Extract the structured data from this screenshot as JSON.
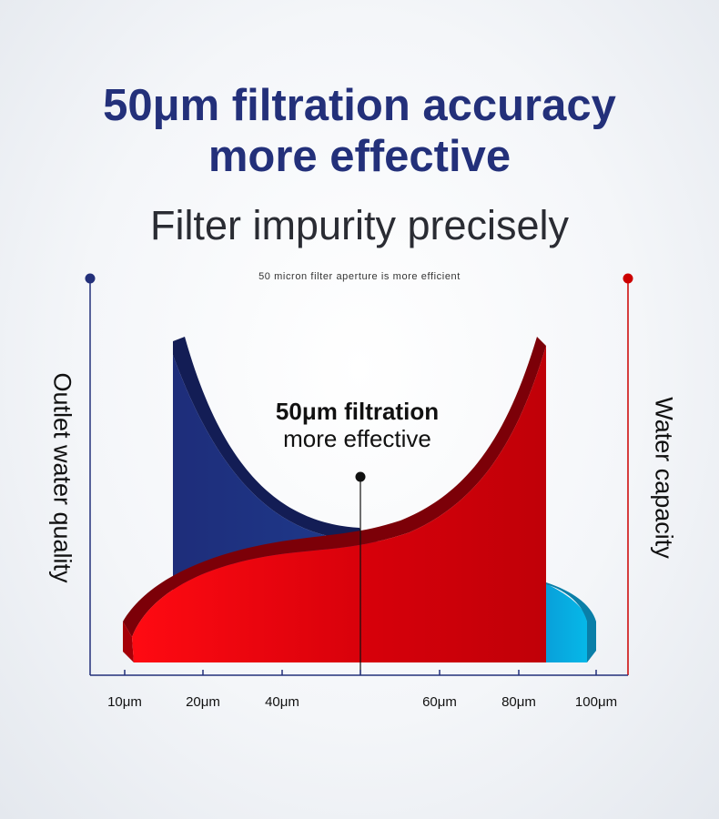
{
  "headline": {
    "line1": "50μm filtration accuracy",
    "line2": "more effective"
  },
  "subheadline": "Filter impurity precisely",
  "chart_data": {
    "type": "area",
    "title": "50 micron filter aperture is more efficient",
    "ylabel_left": "Outlet water quality",
    "ylabel_right": "Water capacity",
    "x_ticks": [
      {
        "label": "10μm",
        "value": 10
      },
      {
        "label": "20μm",
        "value": 20
      },
      {
        "label": "40μm",
        "value": 40
      },
      {
        "label": "",
        "value": 50
      },
      {
        "label": "60μm",
        "value": 60
      },
      {
        "label": "80μm",
        "value": 80
      },
      {
        "label": "100μm",
        "value": 100
      }
    ],
    "series": [
      {
        "name": "Outlet water quality",
        "color": "#23307a"
      },
      {
        "name": "Water capacity",
        "color": "#e0000a"
      }
    ],
    "annotation": {
      "x": 50,
      "line1": "50μm filtration",
      "line2": "more effective"
    },
    "colors": {
      "left_axis": "#23307a",
      "right_axis": "#cc0000",
      "blue_dark": "#1c2c78",
      "blue_light": "#0ab4e6",
      "red": "#e0000a"
    }
  }
}
